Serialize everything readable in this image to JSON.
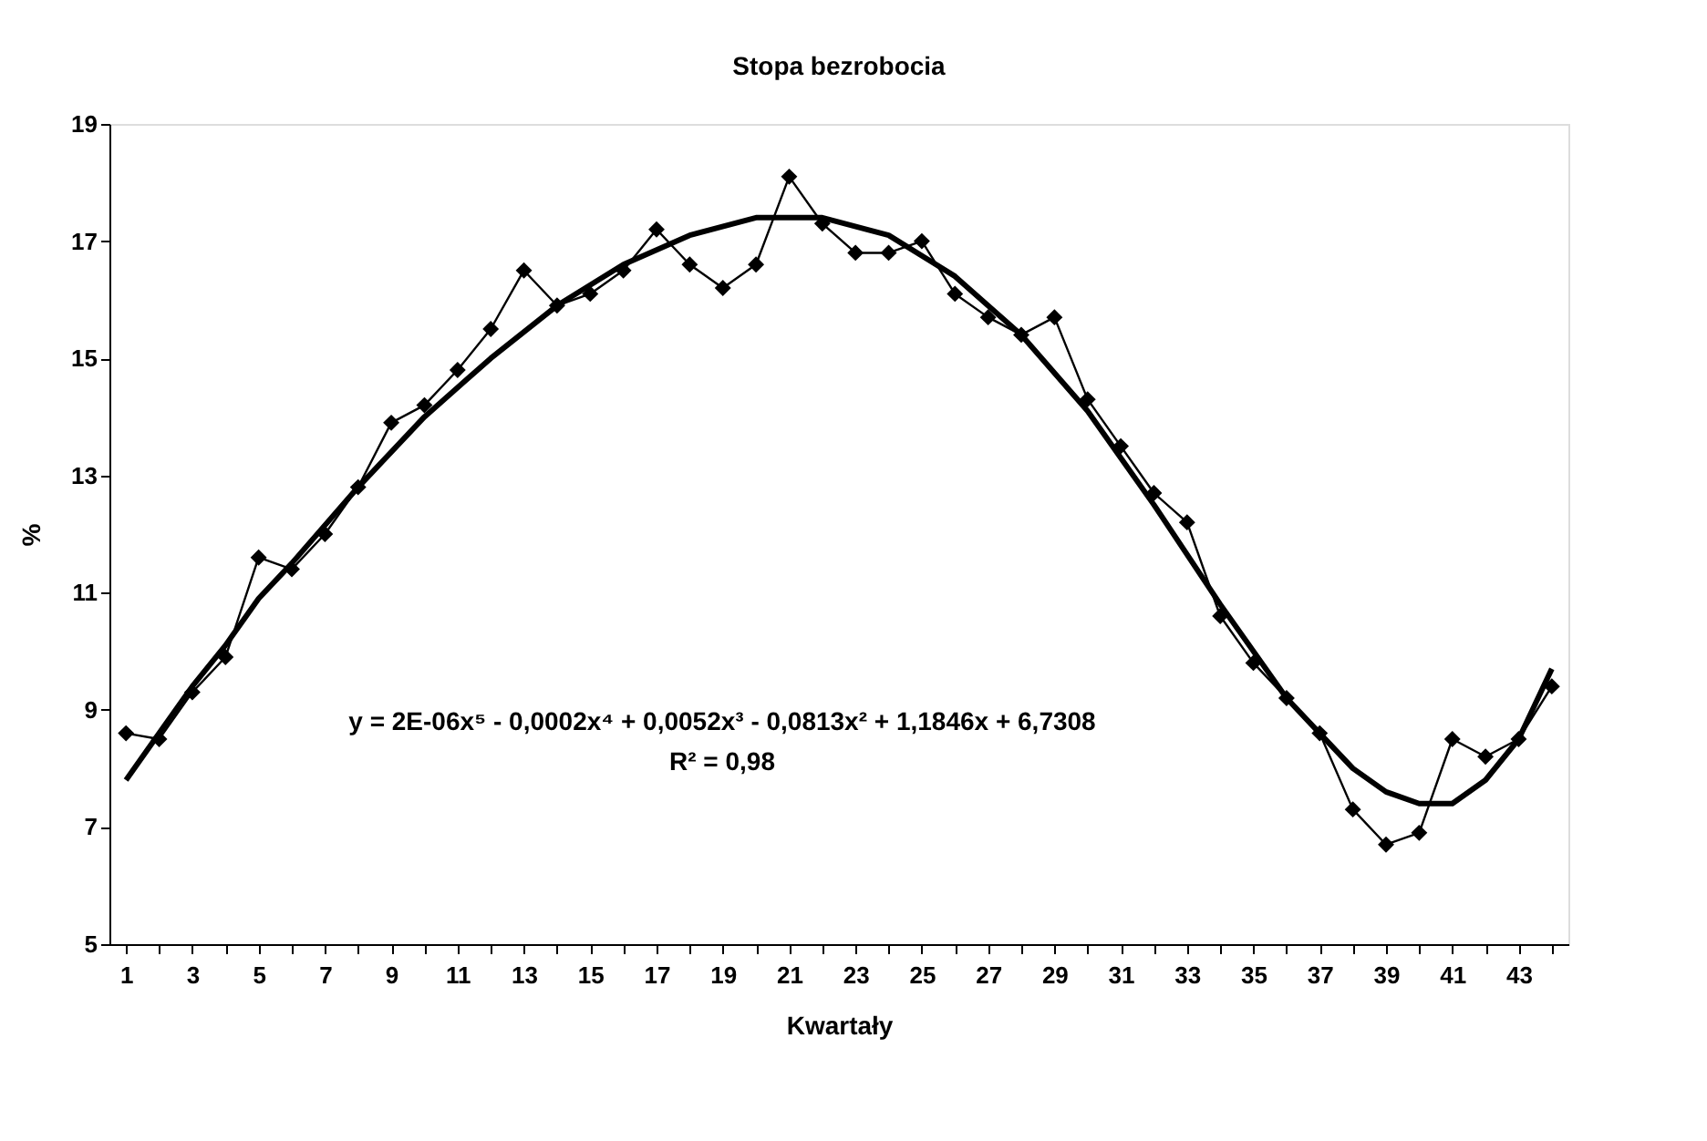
{
  "chart_data": {
    "type": "line",
    "title": "Stopa bezrobocia",
    "xlabel": "Kwartały",
    "ylabel": "%",
    "xlim": [
      0.5,
      44.5
    ],
    "xticks": [
      1,
      {
        "value": 2,
        "label": null
      },
      3,
      {
        "value": 4,
        "label": null
      },
      5,
      {
        "value": 6,
        "label": null
      },
      7,
      {
        "value": 8,
        "label": null
      },
      9,
      {
        "value": 10,
        "label": null
      },
      11,
      {
        "value": 12,
        "label": null
      },
      13,
      {
        "value": 14,
        "label": null
      },
      15,
      {
        "value": 16,
        "label": null
      },
      17,
      {
        "value": 18,
        "label": null
      },
      19,
      {
        "value": 20,
        "label": null
      },
      21,
      {
        "value": 22,
        "label": null
      },
      23,
      {
        "value": 24,
        "label": null
      },
      25,
      {
        "value": 26,
        "label": null
      },
      27,
      {
        "value": 28,
        "label": null
      },
      29,
      {
        "value": 30,
        "label": null
      },
      31,
      {
        "value": 32,
        "label": null
      },
      33,
      {
        "value": 34,
        "label": null
      },
      35,
      {
        "value": 36,
        "label": null
      },
      37,
      {
        "value": 38,
        "label": null
      },
      39,
      {
        "value": 40,
        "label": null
      },
      41,
      {
        "value": 42,
        "label": null
      },
      43,
      {
        "value": 44,
        "label": null
      }
    ],
    "ylim": [
      5,
      19
    ],
    "yticks": [
      5,
      7,
      9,
      11,
      13,
      15,
      17,
      19
    ],
    "grid": false,
    "x": [
      1,
      2,
      3,
      4,
      5,
      6,
      7,
      8,
      9,
      10,
      11,
      12,
      13,
      14,
      15,
      16,
      17,
      18,
      19,
      20,
      21,
      22,
      23,
      24,
      25,
      26,
      27,
      28,
      29,
      30,
      31,
      32,
      33,
      34,
      35,
      36,
      37,
      38,
      39,
      40,
      41,
      42,
      43,
      44
    ],
    "series": [
      {
        "color": "#000000",
        "marker": "diamond",
        "values": [
          8.6,
          8.5,
          9.3,
          9.9,
          11.6,
          11.4,
          12.0,
          12.8,
          13.9,
          14.2,
          14.8,
          15.5,
          16.5,
          15.9,
          16.1,
          16.5,
          17.2,
          16.6,
          16.2,
          16.6,
          18.1,
          17.3,
          16.8,
          16.8,
          17.0,
          16.1,
          15.7,
          15.4,
          15.7,
          14.3,
          13.5,
          12.7,
          12.2,
          10.6,
          9.8,
          9.2,
          8.6,
          7.3,
          6.7,
          6.9,
          8.5,
          8.2,
          8.5,
          9.4
        ]
      },
      {
        "color": "#000000",
        "marker": "none",
        "type": "line",
        "x": [
          1,
          2,
          3,
          4,
          5,
          6,
          8,
          10,
          12,
          14,
          16,
          18,
          20,
          22,
          24,
          26,
          28,
          30,
          32,
          34,
          36,
          37,
          38,
          39,
          40,
          41,
          42,
          43,
          44
        ],
        "values": [
          7.8,
          8.6,
          9.4,
          10.1,
          10.9,
          11.5,
          12.8,
          14.0,
          15.0,
          15.9,
          16.6,
          17.1,
          17.4,
          17.4,
          17.1,
          16.4,
          15.4,
          14.1,
          12.5,
          10.8,
          9.2,
          8.6,
          8.0,
          7.6,
          7.4,
          7.4,
          7.8,
          8.5,
          9.7
        ]
      }
    ],
    "annotations": [
      "y = 2E-06x⁵ - 0,0002x⁴ + 0,0052x³ - 0,0813x² + 1,1846x + 6,7308",
      "R² = 0,98"
    ]
  }
}
